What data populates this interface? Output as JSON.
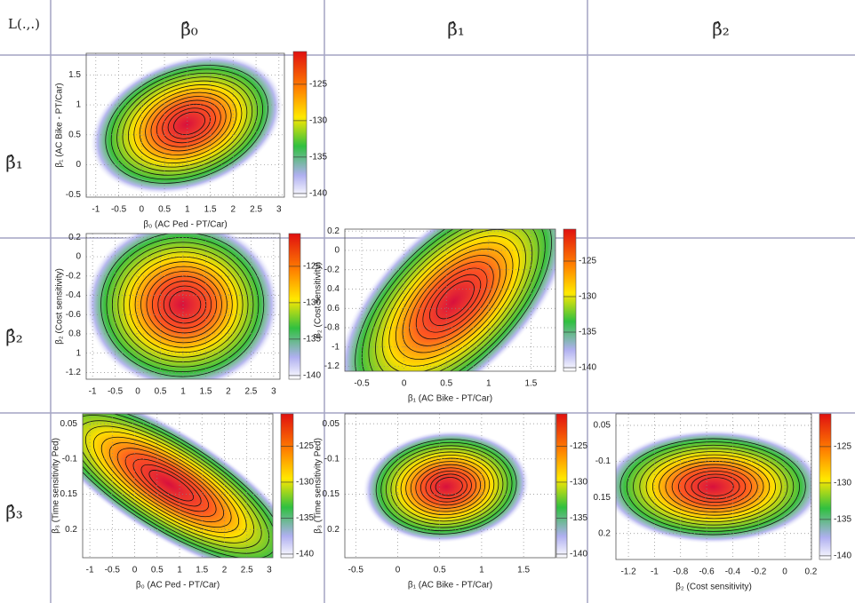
{
  "table": {
    "corner": "L(.,.)",
    "columns": [
      "β̂₀",
      "β̂₁",
      "β̂₂"
    ],
    "rows": [
      "β̂₁",
      "β̂₂",
      "β̂₃"
    ]
  },
  "colorbar": {
    "lim": [
      -120.5,
      -140.5
    ],
    "ticks": [
      -125,
      -130,
      -135,
      -140
    ]
  },
  "plots": [
    {
      "row": 0,
      "col": 0,
      "xlabel": "β₀ (AC Ped - PT/Car)",
      "ylabel": "β₁ (AC Bike - PT/Car)",
      "xlim": [
        -1.21,
        3.12
      ],
      "xticks": [
        -1,
        -0.5,
        0,
        0.5,
        1,
        1.5,
        2,
        2.5,
        3
      ],
      "ylim": [
        -0.54,
        1.86
      ],
      "yticks": [
        1.5,
        1,
        0.5,
        0,
        -0.5
      ]
    },
    {
      "row": 1,
      "col": 0,
      "ylabel": "β₂ (Cost sensitivity)",
      "xlim": [
        -1.14,
        3.14
      ],
      "xticks": [
        -1,
        -0.5,
        0,
        0.5,
        1,
        1.5,
        2,
        2.5,
        3
      ],
      "ylim": [
        -1.27,
        0.24
      ],
      "yticks": [
        0.2,
        0,
        -0.2,
        -0.4,
        -0.6,
        {
          "value": -0.8,
          "label": "0.8"
        },
        {
          "value": -1,
          "label": "1"
        },
        -1.2
      ]
    },
    {
      "row": 1,
      "col": 1,
      "xlabel": "β₁ (AC Bike - PT/Car)",
      "ylabel": "β₂ (Cost sensitivity)",
      "xlim": [
        -0.7,
        1.79
      ],
      "xticks": [
        -0.5,
        0,
        0.5,
        1,
        1.5
      ],
      "ylim": [
        -1.25,
        0.22
      ],
      "yticks": [
        0.2,
        0,
        -0.2,
        {
          "value": -0.4,
          "label": "0.4"
        },
        {
          "value": -0.6,
          "label": "0.6"
        },
        -0.8,
        -1,
        -1.2
      ]
    },
    {
      "row": 2,
      "col": 0,
      "xlabel": "β₀ (AC Ped - PT/Car)",
      "ylabel": "β₃ (Time sensitivity Ped)",
      "xlim": [
        -1.16,
        3.08
      ],
      "xticks": [
        -1,
        -0.5,
        0,
        0.5,
        1,
        1.5,
        2,
        2.5,
        3
      ],
      "ylim": [
        -0.24,
        -0.036
      ],
      "yticks": [
        {
          "value": -0.05,
          "label": "0.05"
        },
        -0.1,
        {
          "value": -0.15,
          "label": "0.15"
        },
        {
          "value": -0.2,
          "label": "0.2"
        }
      ]
    },
    {
      "row": 2,
      "col": 1,
      "xlabel": "β₁ (AC Bike - PT/Car)",
      "ylabel": "β₃ (Time sensitivity Ped)",
      "xlim": [
        -0.63,
        1.88
      ],
      "xticks": [
        -0.5,
        0,
        0.5,
        1,
        1.5
      ],
      "ylim": [
        -0.24,
        -0.036
      ],
      "yticks": [
        {
          "value": -0.05,
          "label": "0.05"
        },
        -0.1,
        {
          "value": -0.15,
          "label": "0.15"
        },
        {
          "value": -0.2,
          "label": "0.2"
        }
      ]
    },
    {
      "row": 2,
      "col": 2,
      "xlabel": "β₂ (Cost sensitivity)",
      "xlim": [
        -1.296,
        0.204
      ],
      "xticks": [
        -1.2,
        -1,
        -0.8,
        -0.6,
        -0.4,
        -0.2,
        0,
        0.2
      ],
      "ylim": [
        -0.236,
        -0.034
      ],
      "yticks": [
        {
          "value": -0.05,
          "label": "0.05"
        },
        -0.1,
        {
          "value": -0.15,
          "label": "0.15"
        },
        {
          "value": -0.2,
          "label": "0.2"
        }
      ]
    }
  ]
}
